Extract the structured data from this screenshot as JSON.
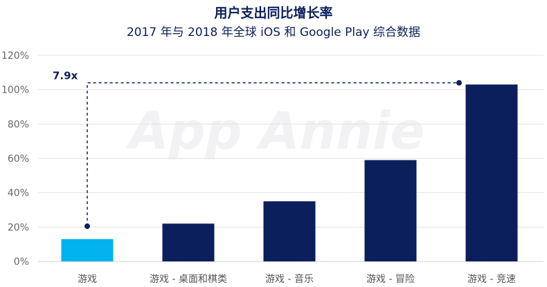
{
  "chart_data": {
    "type": "bar",
    "title": "用户支出同比增长率",
    "subtitle": "2017 年与 2018 年全球 iOS 和 Google Play 综合数据",
    "categories": [
      "游戏",
      "游戏 - 桌面和棋类",
      "游戏 - 音乐",
      "游戏 - 冒险",
      "游戏 - 竞速"
    ],
    "values": [
      13,
      22,
      35,
      59,
      103
    ],
    "bar_colors": [
      "#00b2ee",
      "#0b1f5c",
      "#0b1f5c",
      "#0b1f5c",
      "#0b1f5c"
    ],
    "ylim": [
      0,
      120
    ],
    "yticks": [
      "0%",
      "20%",
      "40%",
      "60%",
      "80%",
      "100%",
      "120%"
    ],
    "ytick_values": [
      0,
      20,
      40,
      60,
      80,
      100,
      120
    ],
    "grid": true,
    "annotation": {
      "text": "7.9x",
      "from_category": 0,
      "to_category": 4,
      "level": 104
    },
    "watermark": "App Annie"
  }
}
